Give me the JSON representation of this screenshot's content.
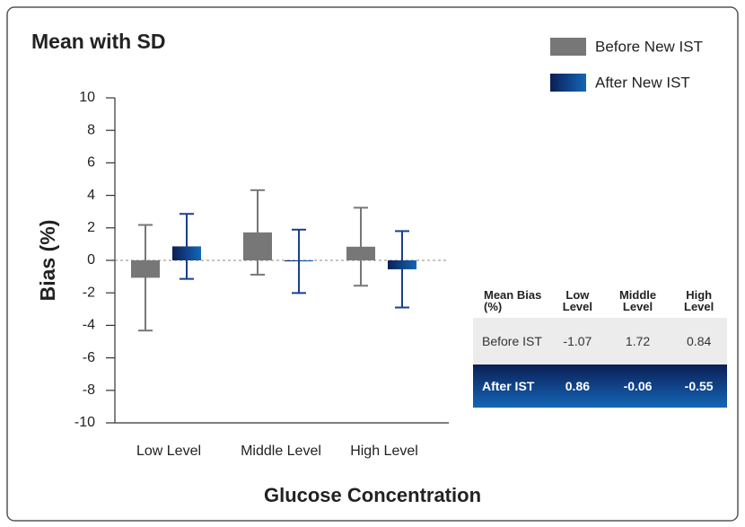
{
  "chart_data": {
    "type": "bar",
    "title": "Mean with SD",
    "x_label": "Glucose Concentration",
    "y_label": "Bias (%)",
    "categories": [
      "Low Level",
      "Middle Level",
      "High Level"
    ],
    "series": [
      {
        "name": "Before New IST",
        "color": "#777777",
        "values": [
          -1.07,
          1.72,
          0.84
        ],
        "errors": [
          3.25,
          2.6,
          2.4
        ]
      },
      {
        "name": "After New IST",
        "color": "#1466b8",
        "values": [
          0.86,
          -0.06,
          -0.55
        ],
        "errors": [
          2.0,
          1.95,
          2.35
        ]
      }
    ],
    "ylim": [
      -10,
      10
    ],
    "yticks": [
      -10,
      -8,
      -6,
      -4,
      -2,
      0,
      2,
      4,
      6,
      8,
      10
    ],
    "legend": "top-right"
  },
  "table": {
    "header": "Mean Bias (%)",
    "row_labels": [
      "Before IST",
      "After IST"
    ]
  }
}
